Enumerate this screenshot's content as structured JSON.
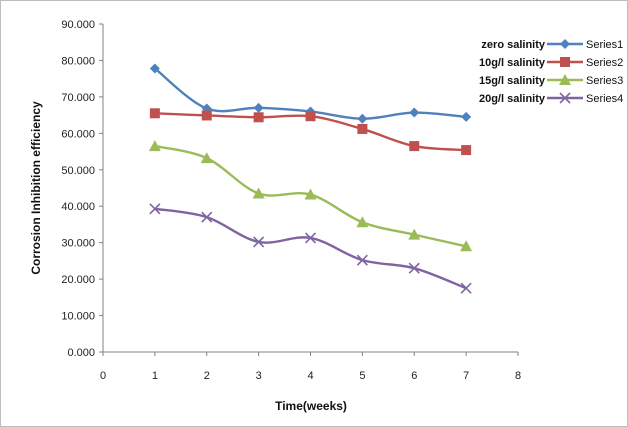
{
  "chart_data": {
    "type": "line",
    "title": "",
    "xlabel": "Time(weeks)",
    "ylabel": "Corrosion Inhibition efficiency",
    "xlim": [
      0,
      8
    ],
    "ylim": [
      0,
      90
    ],
    "xticks": [
      "0",
      "1",
      "2",
      "3",
      "4",
      "5",
      "6",
      "7",
      "8"
    ],
    "yticks": [
      "0.000",
      "10.000",
      "20.000",
      "30.000",
      "40.000",
      "50.000",
      "60.000",
      "70.000",
      "80.000",
      "90.000"
    ],
    "grid": false,
    "legend_position": "top-right",
    "x": [
      1,
      2,
      3,
      4,
      5,
      6,
      7
    ],
    "series": [
      {
        "name": "Series1",
        "note": "zero salinity",
        "color": "#4F81BD",
        "marker": "diamond",
        "values": [
          77.8,
          66.8,
          67.0,
          66.0,
          64.0,
          65.7,
          64.5
        ]
      },
      {
        "name": "Series2",
        "note": "10g/l salinity",
        "color": "#C0504D",
        "marker": "square",
        "values": [
          65.5,
          64.9,
          64.4,
          64.7,
          61.2,
          56.5,
          55.4
        ]
      },
      {
        "name": "Series3",
        "note": "15g/l salinity",
        "color": "#9BBB59",
        "marker": "triangle",
        "values": [
          56.5,
          53.2,
          43.5,
          43.2,
          35.6,
          32.2,
          29.0
        ]
      },
      {
        "name": "Series4",
        "note": "20g/l salinity",
        "color": "#8064A2",
        "marker": "x",
        "values": [
          39.3,
          37.0,
          30.2,
          31.3,
          25.2,
          23.0,
          17.5
        ]
      }
    ]
  }
}
